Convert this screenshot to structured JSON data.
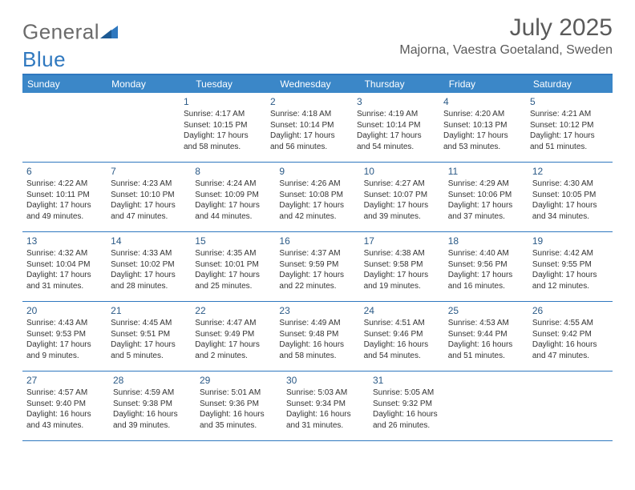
{
  "brand": {
    "name_part1": "General",
    "name_part2": "Blue",
    "icon_color": "#2f78bf"
  },
  "title": "July 2025",
  "location": "Majorna, Vaestra Goetaland, Sweden",
  "colors": {
    "header_bg": "#3b87c8",
    "header_border": "#2f78bf",
    "row_border": "#2f78bf",
    "day_number": "#2b5a87",
    "text": "#333333",
    "muted": "#5a5a5a",
    "bg": "#ffffff"
  },
  "weekdays": [
    "Sunday",
    "Monday",
    "Tuesday",
    "Wednesday",
    "Thursday",
    "Friday",
    "Saturday"
  ],
  "weeks": [
    [
      null,
      null,
      {
        "n": "1",
        "sr": "Sunrise: 4:17 AM",
        "ss": "Sunset: 10:15 PM",
        "d1": "Daylight: 17 hours",
        "d2": "and 58 minutes."
      },
      {
        "n": "2",
        "sr": "Sunrise: 4:18 AM",
        "ss": "Sunset: 10:14 PM",
        "d1": "Daylight: 17 hours",
        "d2": "and 56 minutes."
      },
      {
        "n": "3",
        "sr": "Sunrise: 4:19 AM",
        "ss": "Sunset: 10:14 PM",
        "d1": "Daylight: 17 hours",
        "d2": "and 54 minutes."
      },
      {
        "n": "4",
        "sr": "Sunrise: 4:20 AM",
        "ss": "Sunset: 10:13 PM",
        "d1": "Daylight: 17 hours",
        "d2": "and 53 minutes."
      },
      {
        "n": "5",
        "sr": "Sunrise: 4:21 AM",
        "ss": "Sunset: 10:12 PM",
        "d1": "Daylight: 17 hours",
        "d2": "and 51 minutes."
      }
    ],
    [
      {
        "n": "6",
        "sr": "Sunrise: 4:22 AM",
        "ss": "Sunset: 10:11 PM",
        "d1": "Daylight: 17 hours",
        "d2": "and 49 minutes."
      },
      {
        "n": "7",
        "sr": "Sunrise: 4:23 AM",
        "ss": "Sunset: 10:10 PM",
        "d1": "Daylight: 17 hours",
        "d2": "and 47 minutes."
      },
      {
        "n": "8",
        "sr": "Sunrise: 4:24 AM",
        "ss": "Sunset: 10:09 PM",
        "d1": "Daylight: 17 hours",
        "d2": "and 44 minutes."
      },
      {
        "n": "9",
        "sr": "Sunrise: 4:26 AM",
        "ss": "Sunset: 10:08 PM",
        "d1": "Daylight: 17 hours",
        "d2": "and 42 minutes."
      },
      {
        "n": "10",
        "sr": "Sunrise: 4:27 AM",
        "ss": "Sunset: 10:07 PM",
        "d1": "Daylight: 17 hours",
        "d2": "and 39 minutes."
      },
      {
        "n": "11",
        "sr": "Sunrise: 4:29 AM",
        "ss": "Sunset: 10:06 PM",
        "d1": "Daylight: 17 hours",
        "d2": "and 37 minutes."
      },
      {
        "n": "12",
        "sr": "Sunrise: 4:30 AM",
        "ss": "Sunset: 10:05 PM",
        "d1": "Daylight: 17 hours",
        "d2": "and 34 minutes."
      }
    ],
    [
      {
        "n": "13",
        "sr": "Sunrise: 4:32 AM",
        "ss": "Sunset: 10:04 PM",
        "d1": "Daylight: 17 hours",
        "d2": "and 31 minutes."
      },
      {
        "n": "14",
        "sr": "Sunrise: 4:33 AM",
        "ss": "Sunset: 10:02 PM",
        "d1": "Daylight: 17 hours",
        "d2": "and 28 minutes."
      },
      {
        "n": "15",
        "sr": "Sunrise: 4:35 AM",
        "ss": "Sunset: 10:01 PM",
        "d1": "Daylight: 17 hours",
        "d2": "and 25 minutes."
      },
      {
        "n": "16",
        "sr": "Sunrise: 4:37 AM",
        "ss": "Sunset: 9:59 PM",
        "d1": "Daylight: 17 hours",
        "d2": "and 22 minutes."
      },
      {
        "n": "17",
        "sr": "Sunrise: 4:38 AM",
        "ss": "Sunset: 9:58 PM",
        "d1": "Daylight: 17 hours",
        "d2": "and 19 minutes."
      },
      {
        "n": "18",
        "sr": "Sunrise: 4:40 AM",
        "ss": "Sunset: 9:56 PM",
        "d1": "Daylight: 17 hours",
        "d2": "and 16 minutes."
      },
      {
        "n": "19",
        "sr": "Sunrise: 4:42 AM",
        "ss": "Sunset: 9:55 PM",
        "d1": "Daylight: 17 hours",
        "d2": "and 12 minutes."
      }
    ],
    [
      {
        "n": "20",
        "sr": "Sunrise: 4:43 AM",
        "ss": "Sunset: 9:53 PM",
        "d1": "Daylight: 17 hours",
        "d2": "and 9 minutes."
      },
      {
        "n": "21",
        "sr": "Sunrise: 4:45 AM",
        "ss": "Sunset: 9:51 PM",
        "d1": "Daylight: 17 hours",
        "d2": "and 5 minutes."
      },
      {
        "n": "22",
        "sr": "Sunrise: 4:47 AM",
        "ss": "Sunset: 9:49 PM",
        "d1": "Daylight: 17 hours",
        "d2": "and 2 minutes."
      },
      {
        "n": "23",
        "sr": "Sunrise: 4:49 AM",
        "ss": "Sunset: 9:48 PM",
        "d1": "Daylight: 16 hours",
        "d2": "and 58 minutes."
      },
      {
        "n": "24",
        "sr": "Sunrise: 4:51 AM",
        "ss": "Sunset: 9:46 PM",
        "d1": "Daylight: 16 hours",
        "d2": "and 54 minutes."
      },
      {
        "n": "25",
        "sr": "Sunrise: 4:53 AM",
        "ss": "Sunset: 9:44 PM",
        "d1": "Daylight: 16 hours",
        "d2": "and 51 minutes."
      },
      {
        "n": "26",
        "sr": "Sunrise: 4:55 AM",
        "ss": "Sunset: 9:42 PM",
        "d1": "Daylight: 16 hours",
        "d2": "and 47 minutes."
      }
    ],
    [
      {
        "n": "27",
        "sr": "Sunrise: 4:57 AM",
        "ss": "Sunset: 9:40 PM",
        "d1": "Daylight: 16 hours",
        "d2": "and 43 minutes."
      },
      {
        "n": "28",
        "sr": "Sunrise: 4:59 AM",
        "ss": "Sunset: 9:38 PM",
        "d1": "Daylight: 16 hours",
        "d2": "and 39 minutes."
      },
      {
        "n": "29",
        "sr": "Sunrise: 5:01 AM",
        "ss": "Sunset: 9:36 PM",
        "d1": "Daylight: 16 hours",
        "d2": "and 35 minutes."
      },
      {
        "n": "30",
        "sr": "Sunrise: 5:03 AM",
        "ss": "Sunset: 9:34 PM",
        "d1": "Daylight: 16 hours",
        "d2": "and 31 minutes."
      },
      {
        "n": "31",
        "sr": "Sunrise: 5:05 AM",
        "ss": "Sunset: 9:32 PM",
        "d1": "Daylight: 16 hours",
        "d2": "and 26 minutes."
      },
      null,
      null
    ]
  ]
}
